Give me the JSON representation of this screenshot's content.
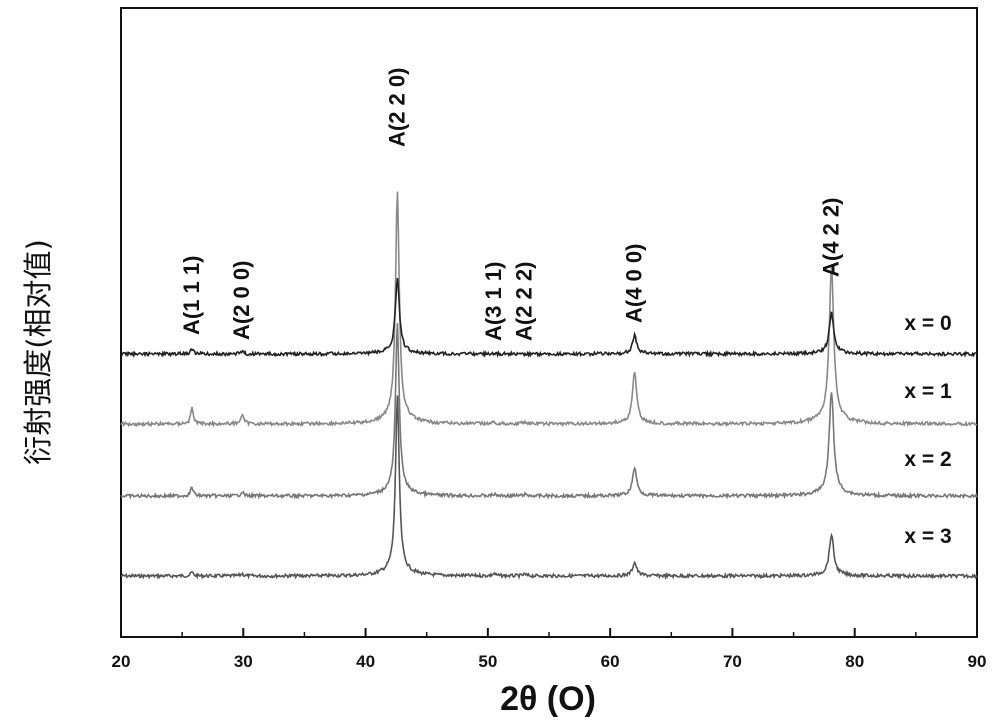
{
  "chart_data": {
    "type": "line",
    "title": "",
    "xlabel": "2θ (O)",
    "ylabel": "衍射强度(相对值)",
    "xlim": [
      20,
      90
    ],
    "x_ticks": [
      "20",
      "30",
      "40",
      "50",
      "60",
      "70",
      "80",
      "90"
    ],
    "y_ticks": [],
    "grid": false,
    "peaks": [
      {
        "label": "A(1 1 1)",
        "x": 25.8
      },
      {
        "label": "A(2 0 0)",
        "x": 29.9
      },
      {
        "label": "A(2 2 0)",
        "x": 42.6
      },
      {
        "label": "A(3 1 1)",
        "x": 50.5
      },
      {
        "label": "A(2 2 2)",
        "x": 53.0
      },
      {
        "label": "A(4 0 0)",
        "x": 62.0
      },
      {
        "label": "A(4 2 2)",
        "x": 78.1
      }
    ],
    "series": [
      {
        "name": "x = 3",
        "color": "#555555",
        "baseline": 3.0,
        "peaks": [
          [
            25.8,
            0.05,
            0.12
          ],
          [
            29.9,
            0.03,
            0.12
          ],
          [
            42.6,
            2.4,
            0.18
          ],
          [
            50.5,
            0.03,
            0.15
          ],
          [
            53.0,
            0.02,
            0.15
          ],
          [
            62.0,
            0.18,
            0.2
          ],
          [
            78.1,
            0.55,
            0.22
          ]
        ]
      },
      {
        "name": "x = 2",
        "color": "#777777",
        "baseline": 2.0,
        "peaks": [
          [
            25.8,
            0.12,
            0.12
          ],
          [
            29.9,
            0.06,
            0.12
          ],
          [
            42.6,
            2.3,
            0.18
          ],
          [
            50.5,
            0.02,
            0.15
          ],
          [
            53.0,
            0.02,
            0.15
          ],
          [
            62.0,
            0.38,
            0.2
          ],
          [
            78.1,
            1.4,
            0.22
          ]
        ]
      },
      {
        "name": "x = 1",
        "color": "#888888",
        "baseline": 1.0,
        "peaks": [
          [
            25.8,
            0.22,
            0.12
          ],
          [
            29.9,
            0.12,
            0.15
          ],
          [
            42.6,
            3.1,
            0.18
          ],
          [
            50.5,
            0.02,
            0.15
          ],
          [
            53.0,
            0.03,
            0.15
          ],
          [
            62.0,
            0.7,
            0.2
          ],
          [
            78.1,
            2.1,
            0.22
          ]
        ]
      },
      {
        "name": "x = 0",
        "color": "#222222",
        "baseline": 0.0,
        "peaks": [
          [
            25.8,
            0.07,
            0.12
          ],
          [
            29.9,
            0.04,
            0.12
          ],
          [
            42.6,
            1.0,
            0.2
          ],
          [
            50.5,
            0.0,
            0.15
          ],
          [
            53.0,
            0.0,
            0.15
          ],
          [
            62.0,
            0.25,
            0.2
          ],
          [
            78.1,
            0.55,
            0.22
          ]
        ]
      }
    ]
  }
}
